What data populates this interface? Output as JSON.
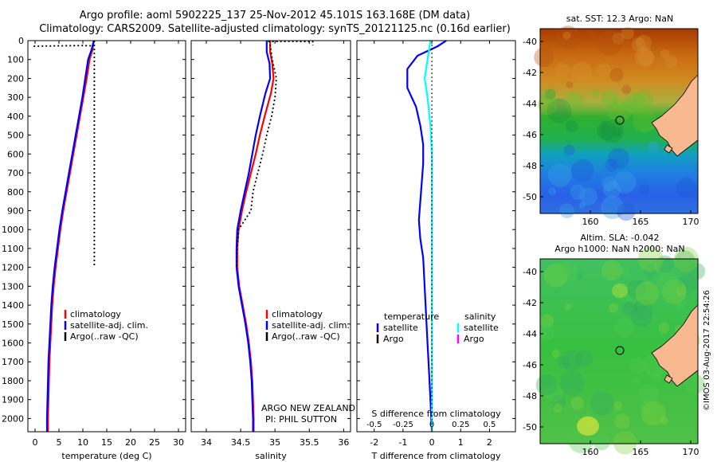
{
  "header": {
    "line1": "Argo profile: aoml 5902225_137 25-Nov-2012 45.101S 163.168E (DM data)",
    "line2": "Climatology: CARS2009. Satellite-adjusted climatology: synTS_20121125.nc (0.16d earlier)"
  },
  "credit": "ARGO NEW ZEALAND",
  "pi": "PI: PHIL SUTTON",
  "stamp": "©IMOS 03-Aug-2017 22:54:26",
  "colors": {
    "climatology": "#ff0000",
    "satellite": "#0000ff",
    "argo": "#000000",
    "sal_sat": "#00ffff",
    "argo_sal": "#ff00ff",
    "land": "#f8b890"
  },
  "chart_data": [
    {
      "type": "line",
      "xlabel": "temperature (deg C)",
      "xticks": [
        0,
        5,
        10,
        15,
        20,
        25,
        30
      ],
      "xlim": [
        -1.5,
        31.5
      ],
      "ylim": [
        2070,
        0
      ],
      "yticks": [
        0,
        100,
        200,
        300,
        400,
        500,
        600,
        700,
        800,
        900,
        1000,
        1100,
        1200,
        1300,
        1400,
        1500,
        1600,
        1700,
        1800,
        1900,
        2000
      ],
      "legend": [
        "climatology",
        "satellite-adj. clim.",
        "Argo(..raw -QC)"
      ],
      "series": [
        {
          "name": "climatology",
          "points": [
            [
              12.3,
              0
            ],
            [
              12.0,
              50
            ],
            [
              11.4,
              100
            ],
            [
              10.8,
              200
            ],
            [
              10.1,
              300
            ],
            [
              9.4,
              400
            ],
            [
              8.7,
              500
            ],
            [
              8.0,
              600
            ],
            [
              7.3,
              700
            ],
            [
              6.6,
              800
            ],
            [
              5.9,
              900
            ],
            [
              5.3,
              1000
            ],
            [
              4.8,
              1100
            ],
            [
              4.3,
              1200
            ],
            [
              3.9,
              1300
            ],
            [
              3.6,
              1400
            ],
            [
              3.4,
              1500
            ],
            [
              3.2,
              1600
            ],
            [
              3.0,
              1700
            ],
            [
              2.9,
              1800
            ],
            [
              2.8,
              1900
            ],
            [
              2.7,
              2000
            ],
            [
              2.7,
              2070
            ]
          ]
        },
        {
          "name": "satellite-adj. clim.",
          "points": [
            [
              12.3,
              0
            ],
            [
              11.8,
              50
            ],
            [
              11.1,
              100
            ],
            [
              10.5,
              200
            ],
            [
              9.9,
              300
            ],
            [
              9.2,
              400
            ],
            [
              8.5,
              500
            ],
            [
              7.8,
              600
            ],
            [
              7.1,
              700
            ],
            [
              6.4,
              800
            ],
            [
              5.7,
              900
            ],
            [
              5.1,
              1000
            ],
            [
              4.6,
              1100
            ],
            [
              4.1,
              1200
            ],
            [
              3.7,
              1300
            ],
            [
              3.4,
              1400
            ],
            [
              3.2,
              1500
            ],
            [
              3.0,
              1600
            ],
            [
              2.8,
              1700
            ],
            [
              2.7,
              1800
            ],
            [
              2.6,
              1900
            ],
            [
              2.5,
              2000
            ],
            [
              2.5,
              2070
            ]
          ]
        },
        {
          "name": "Argo(..raw -QC)",
          "points": [
            [
              12.4,
              0
            ],
            [
              12.4,
              100
            ],
            [
              12.4,
              300
            ],
            [
              12.4,
              500
            ],
            [
              12.4,
              700
            ],
            [
              12.4,
              900
            ],
            [
              12.4,
              1100
            ],
            [
              12.4,
              1200
            ]
          ]
        },
        {
          "name": "Argo near-surface",
          "points": [
            [
              -0.3,
              30
            ],
            [
              4,
              28
            ],
            [
              10,
              26
            ],
            [
              12.2,
              28
            ]
          ]
        }
      ]
    },
    {
      "type": "line",
      "xlabel": "salinity",
      "xticks": [
        34,
        34.5,
        35,
        35.5,
        36
      ],
      "xlim": [
        33.78,
        36.1
      ],
      "ylim": [
        2070,
        0
      ],
      "legend": [
        "climatology",
        "satellite-adj. clim.",
        "Argo(..raw -QC)"
      ],
      "series": [
        {
          "name": "climatology",
          "points": [
            [
              34.93,
              0
            ],
            [
              34.93,
              60
            ],
            [
              34.96,
              120
            ],
            [
              34.98,
              200
            ],
            [
              34.94,
              280
            ],
            [
              34.85,
              400
            ],
            [
              34.78,
              500
            ],
            [
              34.72,
              600
            ],
            [
              34.65,
              700
            ],
            [
              34.58,
              800
            ],
            [
              34.52,
              900
            ],
            [
              34.47,
              1000
            ],
            [
              34.45,
              1100
            ],
            [
              34.45,
              1200
            ],
            [
              34.48,
              1300
            ],
            [
              34.53,
              1400
            ],
            [
              34.58,
              1500
            ],
            [
              34.62,
              1600
            ],
            [
              34.65,
              1700
            ],
            [
              34.67,
              1800
            ],
            [
              34.68,
              1900
            ],
            [
              34.69,
              2000
            ],
            [
              34.69,
              2070
            ]
          ]
        },
        {
          "name": "satellite-adj. clim.",
          "points": [
            [
              34.88,
              0
            ],
            [
              34.88,
              60
            ],
            [
              34.92,
              120
            ],
            [
              34.93,
              200
            ],
            [
              34.86,
              280
            ],
            [
              34.78,
              400
            ],
            [
              34.72,
              500
            ],
            [
              34.67,
              600
            ],
            [
              34.62,
              700
            ],
            [
              34.56,
              800
            ],
            [
              34.5,
              900
            ],
            [
              34.45,
              1000
            ],
            [
              34.44,
              1100
            ],
            [
              34.44,
              1200
            ],
            [
              34.47,
              1300
            ],
            [
              34.52,
              1400
            ],
            [
              34.57,
              1500
            ],
            [
              34.61,
              1600
            ],
            [
              34.64,
              1700
            ],
            [
              34.66,
              1800
            ],
            [
              34.67,
              1900
            ],
            [
              34.68,
              2000
            ],
            [
              34.68,
              2070
            ]
          ]
        },
        {
          "name": "Argo(..raw -QC)",
          "points": [
            [
              34.92,
              0
            ],
            [
              34.96,
              100
            ],
            [
              35.02,
              200
            ],
            [
              35.0,
              300
            ],
            [
              34.95,
              400
            ],
            [
              34.88,
              500
            ],
            [
              34.82,
              600
            ],
            [
              34.75,
              700
            ],
            [
              34.68,
              800
            ],
            [
              34.65,
              900
            ],
            [
              34.47,
              1000
            ],
            [
              34.45,
              1100
            ],
            [
              34.44,
              1200
            ]
          ]
        },
        {
          "name": "Argo near-surface",
          "points": [
            [
              34.9,
              5
            ],
            [
              35.2,
              4
            ],
            [
              35.55,
              5
            ],
            [
              35.55,
              25
            ]
          ]
        }
      ]
    },
    {
      "type": "line",
      "title": "S difference from climatology",
      "xlabel": "T difference from climatology",
      "xticks": [
        -2,
        -1,
        0,
        1,
        2
      ],
      "xticks_top": [
        -0.5,
        -0.25,
        0,
        0.25,
        0.5
      ],
      "xlim": [
        -2.6,
        2.9
      ],
      "ylim": [
        2070,
        0
      ],
      "legend_t": [
        "temperature",
        "satellite",
        "Argo"
      ],
      "legend_s": [
        "salinity",
        "satellite",
        "Argo"
      ],
      "series": [
        {
          "name": "T satellite",
          "points": [
            [
              0.5,
              0
            ],
            [
              0.2,
              30
            ],
            [
              -0.5,
              80
            ],
            [
              -0.85,
              150
            ],
            [
              -0.85,
              250
            ],
            [
              -0.55,
              350
            ],
            [
              -0.4,
              450
            ],
            [
              -0.3,
              550
            ],
            [
              -0.3,
              650
            ],
            [
              -0.35,
              750
            ],
            [
              -0.4,
              850
            ],
            [
              -0.45,
              950
            ],
            [
              -0.4,
              1050
            ],
            [
              -0.3,
              1150
            ],
            [
              -0.25,
              1300
            ],
            [
              -0.2,
              1450
            ],
            [
              -0.15,
              1600
            ],
            [
              -0.1,
              1750
            ],
            [
              -0.05,
              1900
            ],
            [
              0,
              2070
            ]
          ]
        },
        {
          "name": "S satellite",
          "points": [
            [
              -0.05,
              0
            ],
            [
              -0.1,
              50
            ],
            [
              -0.15,
              100
            ],
            [
              -0.25,
              200
            ],
            [
              -0.15,
              300
            ],
            [
              -0.05,
              450
            ],
            [
              0,
              600
            ],
            [
              0,
              800
            ],
            [
              0,
              1000
            ],
            [
              0,
              1200
            ],
            [
              0,
              1400
            ],
            [
              0,
              1600
            ],
            [
              0,
              1800
            ],
            [
              0,
              2070
            ]
          ]
        },
        {
          "name": "zero",
          "points": [
            [
              0,
              0
            ],
            [
              0,
              2070
            ]
          ]
        }
      ]
    }
  ],
  "maps": [
    {
      "title": "sat. SST: 12.3 Argo: NaN",
      "yticks": [
        -40,
        -42,
        -44,
        -46,
        -48,
        -50
      ],
      "xticks": [
        160,
        165,
        170
      ]
    },
    {
      "title1": "Altim. SLA: -0.042",
      "title2": "Argo h1000: NaN h2000: NaN",
      "yticks": [
        -40,
        -42,
        -44,
        -46,
        -48,
        -50
      ],
      "xticks": [
        160,
        165,
        170
      ]
    }
  ]
}
